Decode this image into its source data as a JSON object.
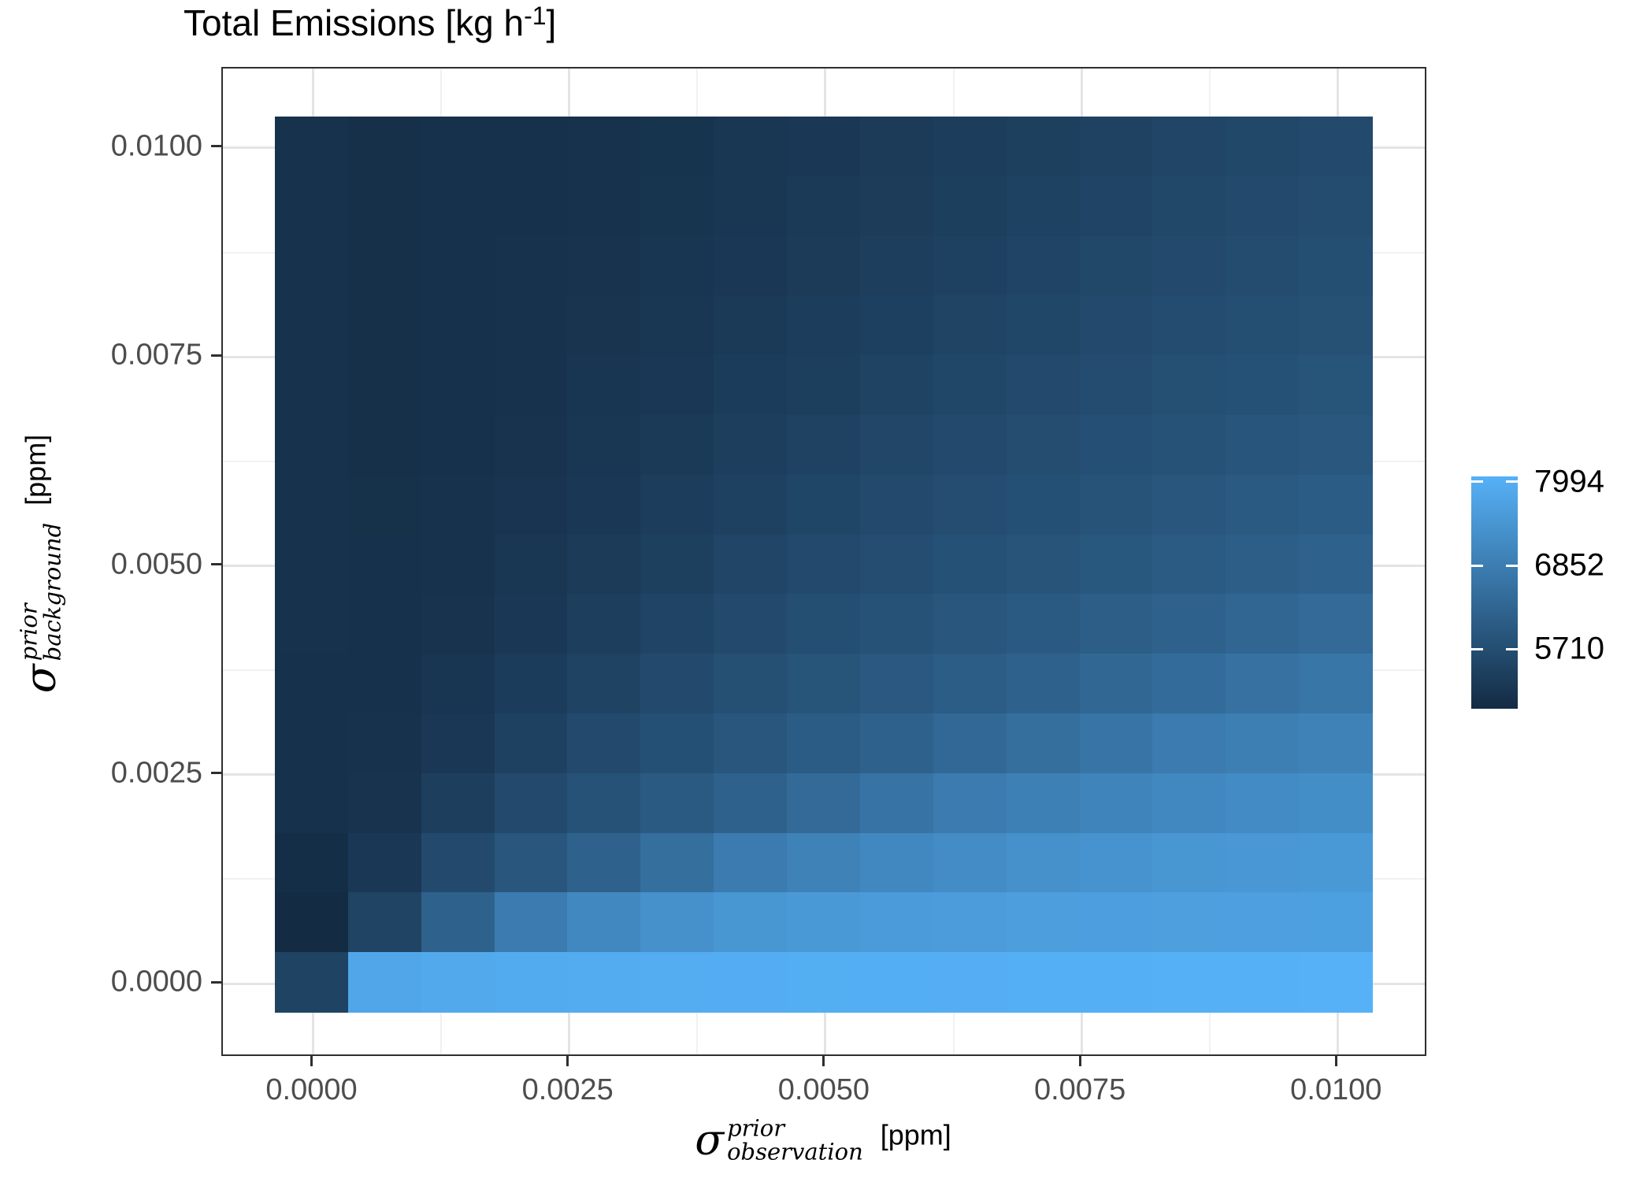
{
  "title": {
    "prefix": "Total Emissions [kg h",
    "sup": "-1",
    "suffix": "]"
  },
  "x_axis": {
    "tick_labels": [
      "0.0000",
      "0.0025",
      "0.0050",
      "0.0075",
      "0.0100"
    ],
    "title": {
      "sigma": "σ",
      "sup": "prior",
      "sub": "observation",
      "unit": "[ppm]"
    }
  },
  "y_axis": {
    "tick_labels": [
      "0.0100",
      "0.0075",
      "0.0050",
      "0.0025",
      "0.0000"
    ],
    "title": {
      "sigma": "σ",
      "sup": "prior",
      "sub": "background",
      "unit": "[ppm]"
    }
  },
  "legend": {
    "tick_labels": [
      "7994",
      "6852",
      "5710"
    ],
    "tick_values": [
      7994,
      6852,
      5710
    ]
  },
  "chart_data": {
    "type": "heatmap",
    "title": "Total Emissions [kg h-1]",
    "xlabel": "sigma_observation_prior [ppm]",
    "ylabel": "sigma_background_prior [ppm]",
    "x": [
      0,
      0.000714,
      0.001429,
      0.002143,
      0.002857,
      0.003571,
      0.004286,
      0.005,
      0.005714,
      0.006429,
      0.007143,
      0.007857,
      0.008571,
      0.009286,
      0.01
    ],
    "y": [
      0,
      0.000714,
      0.001429,
      0.002143,
      0.002857,
      0.003571,
      0.004286,
      0.005,
      0.005714,
      0.006429,
      0.007143,
      0.007857,
      0.008571,
      0.009286,
      0.01
    ],
    "xticks": [
      0,
      0.0025,
      0.005,
      0.0075,
      0.01
    ],
    "yticks": [
      0,
      0.0025,
      0.005,
      0.0075,
      0.01
    ],
    "row_order": "top row first (y = 0.01 descending to y = 0)",
    "values": [
      [
        5066,
        5014,
        5029,
        5043,
        5057,
        5103,
        5156,
        5210,
        5270,
        5330,
        5390,
        5450,
        5510,
        5570,
        5630
      ],
      [
        5064,
        5015,
        5031,
        5046,
        5067,
        5123,
        5181,
        5244,
        5306,
        5368,
        5430,
        5494,
        5557,
        5630,
        5673
      ],
      [
        5062,
        5017,
        5033,
        5050,
        5085,
        5147,
        5210,
        5278,
        5350,
        5420,
        5490,
        5560,
        5630,
        5677,
        5723
      ],
      [
        5060,
        5018,
        5036,
        5055,
        5108,
        5176,
        5248,
        5325,
        5401,
        5477,
        5554,
        5630,
        5681,
        5732,
        5783
      ],
      [
        5058,
        5020,
        5040,
        5060,
        5135,
        5210,
        5294,
        5378,
        5462,
        5546,
        5630,
        5686,
        5742,
        5798,
        5854
      ],
      [
        5056,
        5022,
        5044,
        5085,
        5168,
        5257,
        5350,
        5443,
        5537,
        5630,
        5692,
        5754,
        5817,
        5879,
        5941
      ],
      [
        5054,
        5025,
        5050,
        5116,
        5210,
        5315,
        5420,
        5525,
        5630,
        5700,
        5770,
        5840,
        5910,
        5980,
        6050
      ],
      [
        5052,
        5029,
        5057,
        5157,
        5270,
        5390,
        5510,
        5630,
        5710,
        5790,
        5870,
        5950,
        6030,
        6110,
        6190
      ],
      [
        5050,
        5033,
        5085,
        5210,
        5350,
        5490,
        5630,
        5723,
        5817,
        5910,
        6003,
        6097,
        6190,
        6292,
        6393
      ],
      [
        5045,
        5040,
        5135,
        5294,
        5462,
        5630,
        5742,
        5854,
        5966,
        6078,
        6190,
        6312,
        6434,
        6556,
        6678
      ],
      [
        5040,
        5050,
        5210,
        5420,
        5630,
        5770,
        5910,
        6050,
        6190,
        6343,
        6495,
        6648,
        6800,
        6875,
        6950
      ],
      [
        5035,
        5085,
        5350,
        5630,
        5817,
        6003,
        6190,
        6393,
        6597,
        6800,
        6900,
        7000,
        7100,
        7167,
        7233
      ],
      [
        4960,
        5210,
        5630,
        5910,
        6190,
        6495,
        6800,
        6950,
        7100,
        7200,
        7300,
        7360,
        7420,
        7460,
        7500
      ],
      [
        4894,
        5480,
        6190,
        6800,
        7100,
        7300,
        7420,
        7500,
        7550,
        7580,
        7610,
        7623,
        7635,
        7648,
        7660
      ],
      [
        5460,
        7815,
        7900,
        7930,
        7950,
        7965,
        7978,
        7988,
        7996,
        8004,
        8014,
        8026,
        8040,
        8054,
        8069
      ]
    ],
    "color_scale": {
      "min": 4894,
      "max": 8069,
      "low": "#132B43",
      "high": "#56B1F7"
    },
    "legend_ticks": [
      7994,
      6852,
      5710
    ],
    "grid": true,
    "legend_position": "right"
  }
}
